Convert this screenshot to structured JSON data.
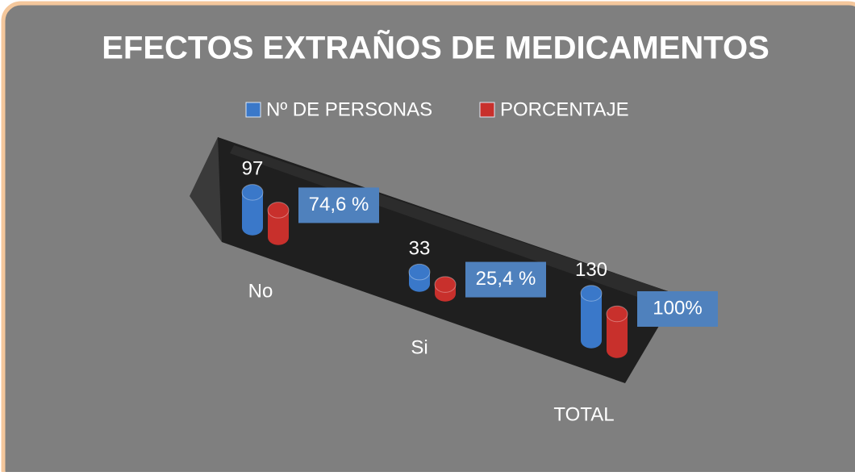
{
  "chart_data": {
    "type": "bar3d",
    "title": "EFECTOS EXTRAÑOS DE MEDICAMENTOS",
    "categories": [
      "No",
      "Si",
      "TOTAL"
    ],
    "series": [
      {
        "name": "Nº DE PERSONAS",
        "color": "#3a78c9",
        "values": [
          97,
          33,
          130
        ]
      },
      {
        "name": "PORCENTAJE",
        "color": "#c8302c",
        "values": [
          74.6,
          25.4,
          100
        ],
        "value_labels": [
          "74,6 %",
          "25,4 %",
          "100%"
        ]
      }
    ]
  }
}
